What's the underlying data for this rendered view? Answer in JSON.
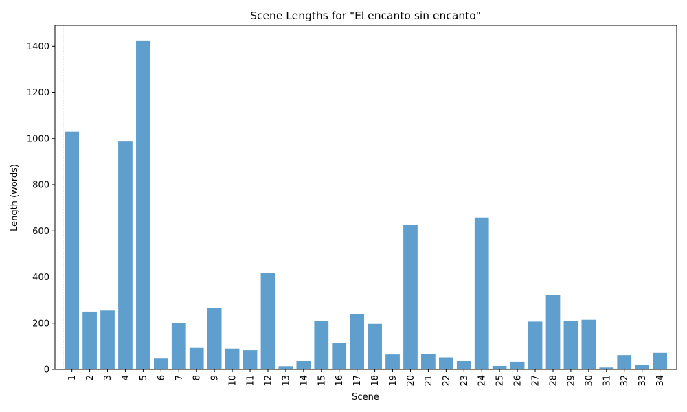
{
  "chart_data": {
    "type": "bar",
    "title": "Scene Lengths for \"El encanto sin encanto\"",
    "xlabel": "Scene",
    "ylabel": "Length (words)",
    "ylim": [
      0,
      1490
    ],
    "yticks": [
      0,
      200,
      400,
      600,
      800,
      1000,
      1200,
      1400
    ],
    "bar_color": "#5f9fcd",
    "categories": [
      "1",
      "2",
      "3",
      "4",
      "5",
      "6",
      "7",
      "8",
      "9",
      "10",
      "11",
      "12",
      "13",
      "14",
      "15",
      "16",
      "17",
      "18",
      "19",
      "20",
      "21",
      "22",
      "23",
      "24",
      "25",
      "26",
      "27",
      "28",
      "29",
      "30",
      "31",
      "32",
      "33",
      "34"
    ],
    "values": [
      1030,
      250,
      255,
      987,
      1425,
      47,
      200,
      93,
      265,
      90,
      83,
      418,
      14,
      37,
      210,
      113,
      238,
      197,
      65,
      625,
      68,
      52,
      38,
      658,
      15,
      33,
      207,
      322,
      210,
      215,
      8,
      62,
      20,
      72
    ],
    "vline_at": 0.5,
    "vline_style": "dashed"
  }
}
